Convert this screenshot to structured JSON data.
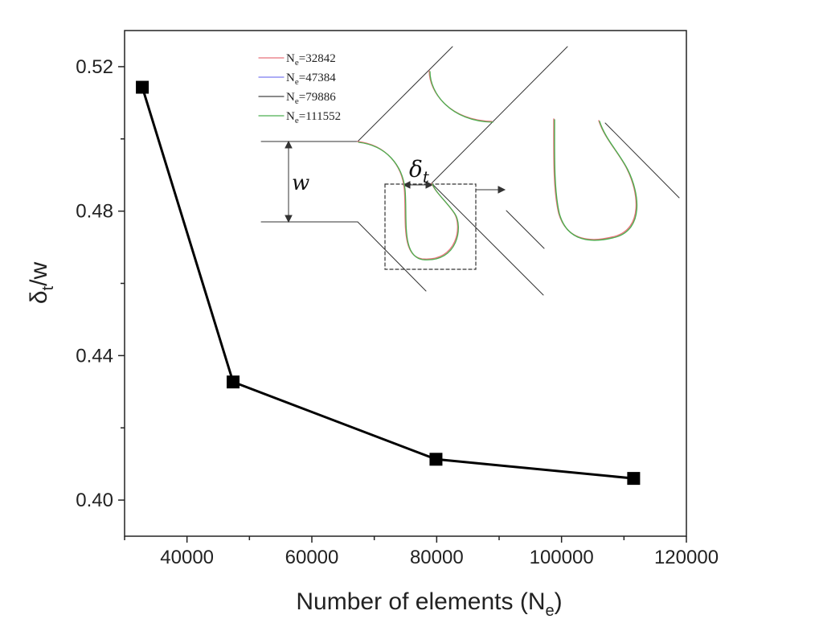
{
  "chart_data": {
    "type": "line",
    "xlabel": "Number of elements (N",
    "xlabel_sub": "e",
    "xlabel_end": ")",
    "ylabel": "δ",
    "ylabel_sub": "t",
    "ylabel_end": "/w",
    "xlim": [
      30000,
      120000
    ],
    "ylim": [
      0.39,
      0.53
    ],
    "x_ticks": [
      40000,
      60000,
      80000,
      100000,
      120000
    ],
    "x_tick_labels": [
      "40000",
      "60000",
      "80000",
      "100000",
      "120000"
    ],
    "y_ticks": [
      0.4,
      0.44,
      0.48,
      0.52
    ],
    "y_tick_labels": [
      "0.40",
      "0.44",
      "0.48",
      "0.52"
    ],
    "series": [
      {
        "x": [
          32842,
          47384,
          79886,
          111552
        ],
        "y": [
          0.5143,
          0.4327,
          0.4113,
          0.406
        ],
        "color": "#000000",
        "marker": "square"
      }
    ],
    "inset": {
      "legend": [
        {
          "prefix": "N",
          "sub": "e",
          "suffix": "=32842",
          "color": "#e8717a"
        },
        {
          "prefix": "N",
          "sub": "e",
          "suffix": "=47384",
          "color": "#7b7bf0"
        },
        {
          "prefix": "N",
          "sub": "e",
          "suffix": "=79886",
          "color": "#444444"
        },
        {
          "prefix": "N",
          "sub": "e",
          "suffix": "=111552",
          "color": "#4caf50"
        }
      ],
      "w_label": "w",
      "delta_label": "δ",
      "delta_sub": "t"
    }
  }
}
